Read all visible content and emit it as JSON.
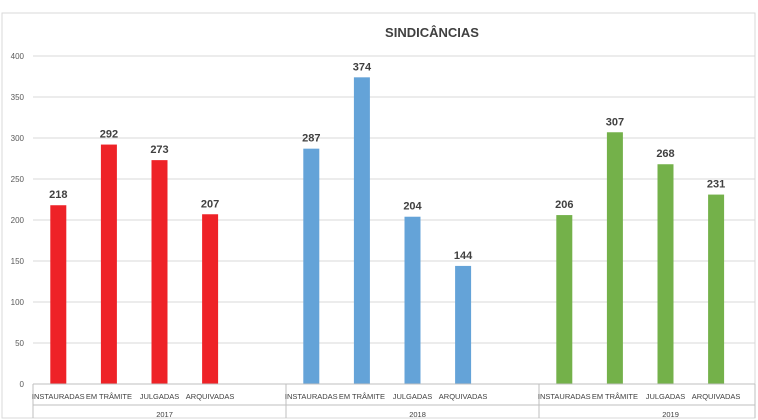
{
  "chart_data": {
    "type": "bar",
    "title": "SINDICÂNCIAS",
    "ylim": [
      0,
      400
    ],
    "yticks": [
      0,
      50,
      100,
      150,
      200,
      250,
      300,
      350,
      400
    ],
    "grid": true,
    "legend": "none",
    "groups": [
      {
        "name": "2017",
        "color": "#ee2227",
        "categories": [
          "INSTAURADAS",
          "EM TRÂMITE",
          "JULGADAS",
          "ARQUIVADAS"
        ],
        "values": [
          218,
          292,
          273,
          207
        ]
      },
      {
        "name": "2018",
        "color": "#64a3d8",
        "categories": [
          "INSTAURADAS",
          "EM TRÂMITE",
          "JULGADAS",
          "ARQUIVADAS"
        ],
        "values": [
          287,
          374,
          204,
          144
        ]
      },
      {
        "name": "2019",
        "color": "#74b14a",
        "categories": [
          "INSTAURADAS",
          "EM TRÂMITE",
          "JULGADAS",
          "ARQUIVADAS"
        ],
        "values": [
          206,
          307,
          268,
          231
        ]
      }
    ]
  }
}
